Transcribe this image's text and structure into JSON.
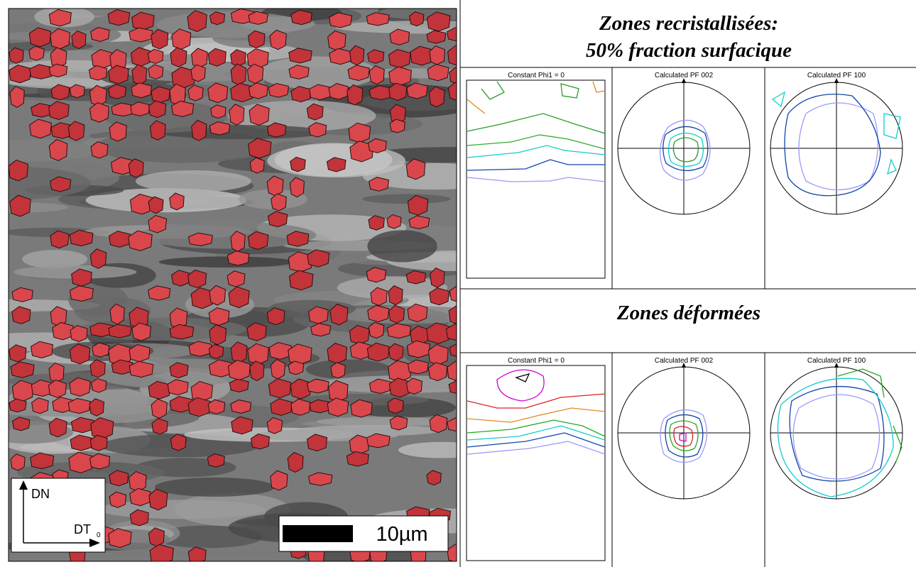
{
  "header": {
    "line1": "Zones recristallisées:",
    "line2": "50% fraction surfacique"
  },
  "section2": {
    "title": "Zones déformées"
  },
  "rows": [
    {
      "odf_label": "Constant Phi1 = 0",
      "pf002_label": "Calculated PF 002",
      "pf100_label": "Calculated PF 100"
    },
    {
      "odf_label": "Constant Phi1 = 0",
      "pf002_label": "Calculated PF 002",
      "pf100_label": "Calculated PF 100"
    }
  ],
  "micrograph": {
    "axis_up": "DN",
    "axis_right": "DT",
    "axis_sub": "0",
    "scale_bar": "10µm"
  }
}
